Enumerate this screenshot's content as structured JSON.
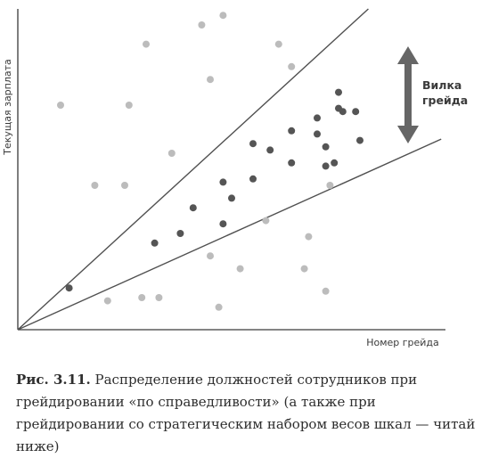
{
  "chart_data": {
    "type": "scatter",
    "xlabel": "Номер грейда",
    "ylabel": "Текущая зарплата",
    "annotation": "Вилка грейда",
    "colors": {
      "inside": "#555555",
      "outside": "#bcbcbc",
      "lines": "#505050",
      "arrow": "#666666"
    },
    "series": [
      {
        "role": "inside-grade-range",
        "points": [
          [
            0.12,
            0.13
          ],
          [
            0.32,
            0.27
          ],
          [
            0.38,
            0.3
          ],
          [
            0.41,
            0.38
          ],
          [
            0.48,
            0.33
          ],
          [
            0.48,
            0.46
          ],
          [
            0.5,
            0.41
          ],
          [
            0.55,
            0.47
          ],
          [
            0.55,
            0.58
          ],
          [
            0.59,
            0.56
          ],
          [
            0.64,
            0.52
          ],
          [
            0.64,
            0.62
          ],
          [
            0.7,
            0.61
          ],
          [
            0.7,
            0.66
          ],
          [
            0.72,
            0.51
          ],
          [
            0.72,
            0.57
          ],
          [
            0.74,
            0.52
          ],
          [
            0.75,
            0.69
          ],
          [
            0.75,
            0.74
          ],
          [
            0.76,
            0.68
          ],
          [
            0.79,
            0.68
          ],
          [
            0.8,
            0.59
          ]
        ]
      },
      {
        "role": "outside-grade-range",
        "points": [
          [
            0.1,
            0.7
          ],
          [
            0.18,
            0.45
          ],
          [
            0.21,
            0.09
          ],
          [
            0.25,
            0.45
          ],
          [
            0.26,
            0.7
          ],
          [
            0.29,
            0.1
          ],
          [
            0.3,
            0.89
          ],
          [
            0.33,
            0.1
          ],
          [
            0.36,
            0.55
          ],
          [
            0.43,
            0.95
          ],
          [
            0.45,
            0.78
          ],
          [
            0.45,
            0.23
          ],
          [
            0.48,
            0.98
          ],
          [
            0.47,
            0.07
          ],
          [
            0.52,
            0.19
          ],
          [
            0.58,
            0.34
          ],
          [
            0.61,
            0.89
          ],
          [
            0.64,
            0.82
          ],
          [
            0.67,
            0.19
          ],
          [
            0.68,
            0.29
          ],
          [
            0.72,
            0.12
          ],
          [
            0.73,
            0.45
          ]
        ]
      }
    ],
    "lines": [
      {
        "role": "upper-bound",
        "slope": 1.22
      },
      {
        "role": "lower-bound",
        "slope": 0.6
      }
    ]
  },
  "caption": {
    "label": "Рис. 3.11.",
    "text": " Распределение должностей сотрудников при грейдировании «по справедливости» (а также при грейдировании со стратегическим набором весов шкал — читай ниже)"
  }
}
